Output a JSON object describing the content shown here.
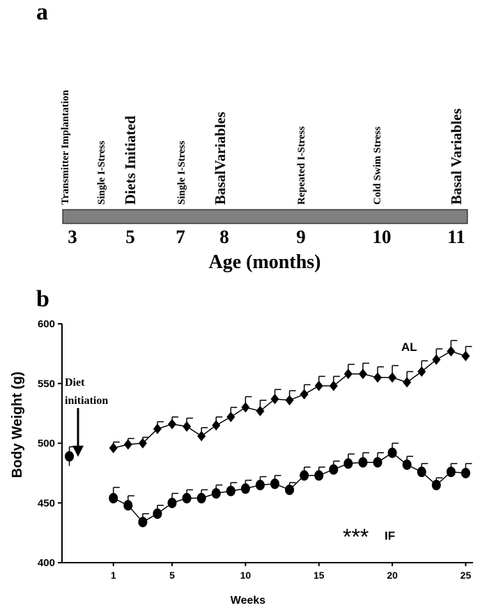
{
  "colors": {
    "ink": "#000000",
    "timeline_bar": "#808080",
    "background": "#ffffff"
  },
  "panel_a": {
    "label": "a",
    "axis_title": "Age (months)",
    "ticks": [
      "3",
      "5",
      "7",
      "8",
      "9",
      "10",
      "11"
    ],
    "events": [
      {
        "label": "Transmitter Implantation",
        "size": "small"
      },
      {
        "label": "Single I-Stress",
        "size": "small"
      },
      {
        "label": "Diets Initiated",
        "size": "large"
      },
      {
        "label": "Single I-Stress",
        "size": "small"
      },
      {
        "label": "BasalVariables",
        "size": "large"
      },
      {
        "label": "Repeated I-Stress",
        "size": "small"
      },
      {
        "label": "Cold  Swim Stress",
        "size": "small"
      },
      {
        "label": "Basal Variables",
        "size": "large"
      }
    ]
  },
  "panel_b": {
    "label": "b",
    "annotation": "Diet\ninitiation",
    "significance": "***"
  },
  "chart_data": {
    "type": "line",
    "title": "",
    "xlabel": "Weeks",
    "ylabel": "Body Weight (g)",
    "xlim": [
      -2.5,
      25.5
    ],
    "ylim": [
      400,
      600
    ],
    "xticks": [
      "1",
      "5",
      "10",
      "15",
      "20",
      "25"
    ],
    "xtick_values": [
      1,
      5,
      10,
      15,
      20,
      25
    ],
    "yticks": [
      "400",
      "450",
      "500",
      "550",
      "600"
    ],
    "ytick_values": [
      400,
      450,
      500,
      550,
      600
    ],
    "grid": false,
    "baseline": {
      "x": -2,
      "y": 489,
      "err": 8,
      "marker": "circle"
    },
    "series": [
      {
        "name": "AL",
        "marker": "diamond",
        "x": [
          1,
          2,
          3,
          4,
          5,
          6,
          7,
          8,
          9,
          10,
          11,
          12,
          13,
          14,
          15,
          16,
          17,
          18,
          19,
          20,
          21,
          22,
          23,
          24,
          25
        ],
        "y": [
          496,
          499,
          500,
          512,
          516,
          514,
          506,
          515,
          522,
          530,
          527,
          537,
          536,
          541,
          548,
          548,
          558,
          558,
          555,
          555,
          551,
          560,
          570,
          577,
          573
        ],
        "err": [
          5,
          5,
          5,
          6,
          6,
          7,
          7,
          7,
          8,
          9,
          9,
          8,
          8,
          8,
          8,
          8,
          8,
          9,
          9,
          10,
          9,
          9,
          9,
          9,
          8
        ]
      },
      {
        "name": "IF",
        "marker": "circle",
        "x": [
          1,
          2,
          3,
          4,
          5,
          6,
          7,
          8,
          9,
          10,
          11,
          12,
          13,
          14,
          15,
          16,
          17,
          18,
          19,
          20,
          21,
          22,
          23,
          24,
          25
        ],
        "y": [
          454,
          448,
          434,
          441,
          450,
          454,
          454,
          458,
          460,
          462,
          465,
          466,
          461,
          473,
          473,
          478,
          483,
          484,
          484,
          492,
          482,
          476,
          465,
          476,
          475
        ],
        "err": [
          9,
          8,
          7,
          7,
          8,
          7,
          7,
          7,
          7,
          7,
          7,
          7,
          6,
          7,
          7,
          7,
          8,
          8,
          8,
          8,
          7,
          7,
          6,
          7,
          8
        ]
      }
    ]
  }
}
